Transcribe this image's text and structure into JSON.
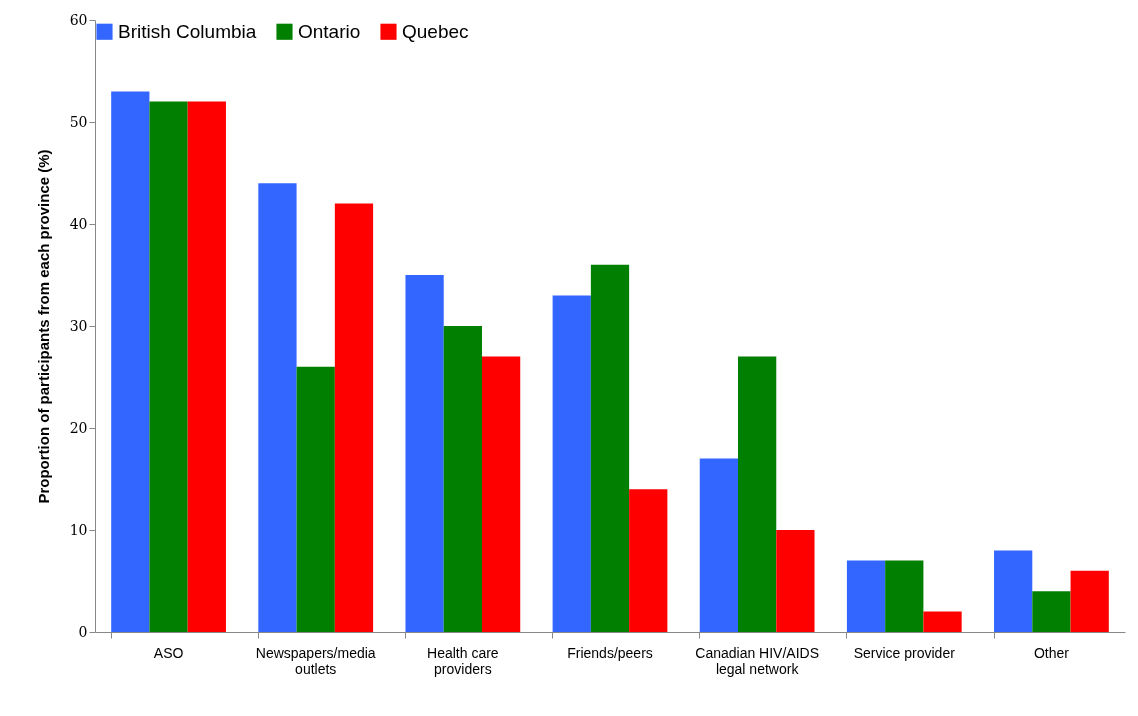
{
  "chart_data": {
    "type": "bar",
    "ylabel": "Proportion of participants from each province (%)",
    "categories": [
      "ASO",
      "Newspapers/media outlets",
      "Health care providers",
      "Friends/peers",
      "Canadian HIV/AIDS legal network",
      "Service provider",
      "Other"
    ],
    "series": [
      {
        "name": "British Columbia",
        "color": "#3366ff",
        "values": [
          53,
          44,
          35,
          33,
          17,
          7,
          8
        ]
      },
      {
        "name": "Ontario",
        "color": "#007f00",
        "values": [
          52,
          26,
          30,
          36,
          27,
          7,
          4
        ]
      },
      {
        "name": "Quebec",
        "color": "#ff0000",
        "values": [
          52,
          42,
          27,
          14,
          10,
          2,
          6
        ]
      }
    ],
    "ylim": [
      0,
      60
    ],
    "yticks": [
      0,
      10,
      20,
      30,
      40,
      50,
      60
    ],
    "grid": false,
    "legend": "top"
  }
}
